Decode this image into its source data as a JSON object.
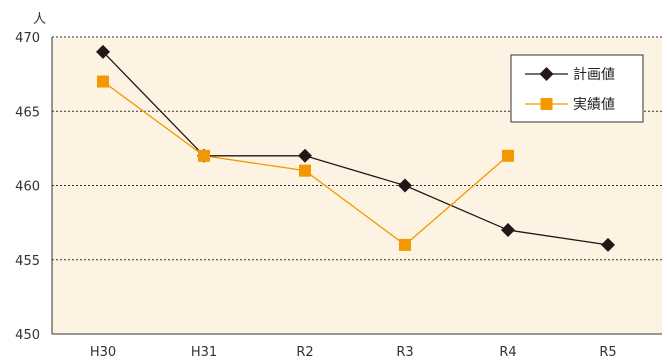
{
  "chart_data": {
    "type": "line",
    "ylabel": "人",
    "ylim": [
      450,
      470
    ],
    "yticks": [
      450,
      455,
      460,
      465,
      470
    ],
    "categories": [
      "H30",
      "H31",
      "R2",
      "R3",
      "R4",
      "R5"
    ],
    "series": [
      {
        "name": "計画値",
        "values": [
          469,
          462,
          462,
          460,
          457,
          456
        ],
        "color": "#231815",
        "marker": "diamond"
      },
      {
        "name": "実績値",
        "values": [
          467,
          462,
          461,
          456,
          462,
          null
        ],
        "color": "#f39800",
        "marker": "square"
      }
    ],
    "grid": "horizontal-dotted",
    "legend_position": "top-right",
    "plot_background": "#fdf3e3"
  }
}
